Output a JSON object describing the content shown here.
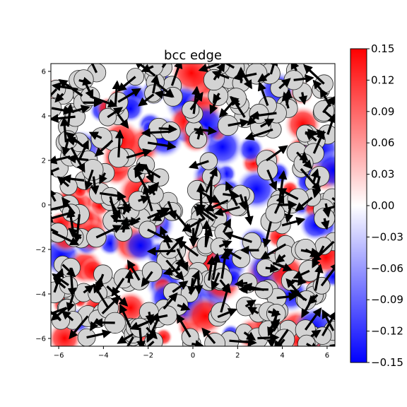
{
  "chart_data": {
    "type": "heatmap",
    "title": "bcc edge",
    "xlim": [
      -6.35,
      6.35
    ],
    "ylim": [
      -6.35,
      6.35
    ],
    "x_ticks": [
      -6,
      -4,
      -2,
      0,
      2,
      4,
      6
    ],
    "y_ticks": [
      -6,
      -4,
      -2,
      0,
      2,
      4,
      6
    ],
    "x_tick_labels": [
      "−6",
      "−4",
      "−2",
      "0",
      "2",
      "4",
      "6"
    ],
    "y_tick_labels": [
      "−6",
      "−4",
      "−2",
      "0",
      "2",
      "4",
      "6"
    ],
    "grid": false,
    "colormap": "bwr",
    "colormap_colors": [
      "#0000ff",
      "#ffffff",
      "#ff0000"
    ],
    "color_range": [
      -0.15,
      0.15
    ],
    "colorbar_ticks": [
      0.15,
      0.12,
      0.09,
      0.06,
      0.03,
      0.0,
      -0.03,
      -0.06,
      -0.09,
      -0.12,
      -0.15
    ],
    "colorbar_tick_labels": [
      "0.15",
      "0.12",
      "0.09",
      "0.06",
      "0.03",
      "0.00",
      "−0.03",
      "−0.06",
      "−0.09",
      "−0.12",
      "−0.15"
    ],
    "overlay": {
      "atoms": "light-gray circles with dark outline (atomic positions)",
      "arrows": "black arrows (displacement vectors)",
      "atom_color": "#d3d3d3",
      "arrow_color": "#000000"
    }
  }
}
